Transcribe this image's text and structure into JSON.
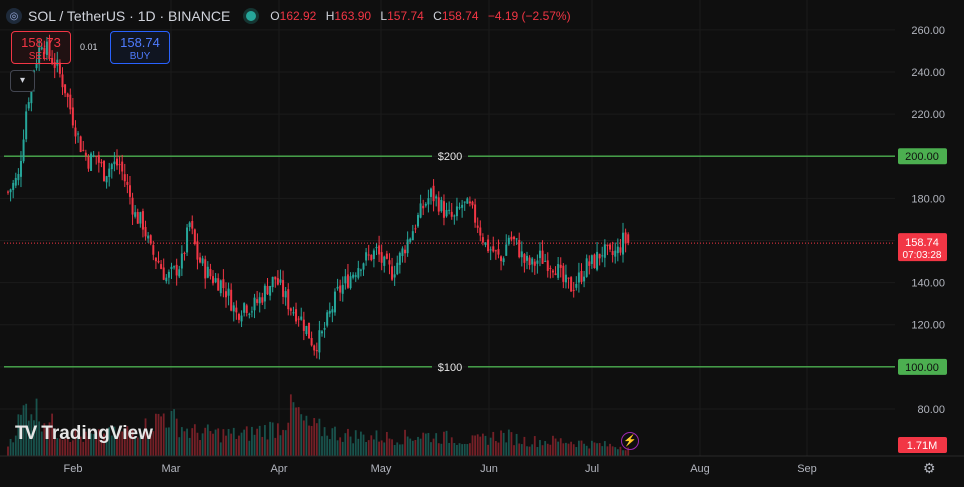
{
  "header": {
    "symbol_icon": "solana-icon",
    "title": "SOL / TetherUS · 1D · BINANCE",
    "ohlc": [
      {
        "key": "O",
        "value": "162.92"
      },
      {
        "key": "H",
        "value": "163.90"
      },
      {
        "key": "L",
        "value": "157.74"
      },
      {
        "key": "C",
        "value": "158.74"
      }
    ],
    "change": "−4.19 (−2.57%)"
  },
  "trade": {
    "sell_price": "158.73",
    "sell_label": "SELL",
    "spread": "0.01",
    "buy_price": "158.74",
    "buy_label": "BUY"
  },
  "collapse_icon": "chevron-down-icon",
  "branding": {
    "logo_text": "TradingView",
    "logo_icon": "tradingview-logo-icon"
  },
  "flash_icon": "lightning-icon",
  "settings_icon": "gear-icon",
  "colors": {
    "up": "#26a69a",
    "down": "#f23645",
    "level_line": "#4caf50",
    "current_line": "#f23645"
  },
  "chart_data": {
    "type": "candlestick",
    "y_axis": {
      "ticks": [
        "260.00",
        "240.00",
        "220.00",
        "200.00",
        "180.00",
        "160.00",
        "140.00",
        "120.00",
        "100.00",
        "80.00"
      ],
      "range": [
        70,
        268
      ]
    },
    "x_axis": {
      "ticks": [
        "Feb",
        "Mar",
        "Apr",
        "May",
        "Jun",
        "Jul",
        "Aug",
        "Sep"
      ]
    },
    "horizontal_lines": [
      {
        "label": "$200",
        "value": 200,
        "axis_label": "200.00"
      },
      {
        "label": "$100",
        "value": 100,
        "axis_label": "100.00"
      }
    ],
    "current_price": {
      "value": 158.74,
      "label": "158.74",
      "countdown": "07:03:28"
    },
    "volume": {
      "last_label": "1.71M"
    },
    "ohlc_keypoints": {
      "comment_free": true,
      "close_path": [
        [
          0,
          183
        ],
        [
          4,
          190
        ],
        [
          7,
          222
        ],
        [
          10,
          242
        ],
        [
          13,
          255
        ],
        [
          16,
          248
        ],
        [
          19,
          242
        ],
        [
          22,
          232
        ],
        [
          25,
          218
        ],
        [
          28,
          205
        ],
        [
          31,
          198
        ],
        [
          34,
          200
        ],
        [
          37,
          192
        ],
        [
          40,
          196
        ],
        [
          43,
          196
        ],
        [
          46,
          185
        ],
        [
          49,
          172
        ],
        [
          52,
          168
        ],
        [
          55,
          155
        ],
        [
          58,
          150
        ],
        [
          61,
          142
        ],
        [
          64,
          145
        ],
        [
          67,
          150
        ],
        [
          70,
          168
        ],
        [
          73,
          152
        ],
        [
          76,
          146
        ],
        [
          79,
          142
        ],
        [
          82,
          140
        ],
        [
          85,
          134
        ],
        [
          88,
          125
        ],
        [
          91,
          130
        ],
        [
          94,
          128
        ],
        [
          97,
          132
        ],
        [
          100,
          138
        ],
        [
          103,
          142
        ],
        [
          106,
          135
        ],
        [
          109,
          128
        ],
        [
          112,
          125
        ],
        [
          115,
          118
        ],
        [
          118,
          110
        ],
        [
          121,
          115
        ],
        [
          124,
          125
        ],
        [
          127,
          135
        ],
        [
          130,
          140
        ],
        [
          133,
          145
        ],
        [
          136,
          150
        ],
        [
          139,
          152
        ],
        [
          142,
          155
        ],
        [
          145,
          148
        ],
        [
          148,
          145
        ],
        [
          151,
          152
        ],
        [
          154,
          160
        ],
        [
          157,
          168
        ],
        [
          160,
          176
        ],
        [
          163,
          182
        ],
        [
          166,
          178
        ],
        [
          169,
          172
        ],
        [
          172,
          170
        ],
        [
          175,
          177
        ],
        [
          178,
          175
        ],
        [
          181,
          168
        ],
        [
          184,
          158
        ],
        [
          187,
          155
        ],
        [
          190,
          150
        ],
        [
          193,
          162
        ],
        [
          196,
          158
        ],
        [
          199,
          150
        ],
        [
          202,
          148
        ],
        [
          205,
          152
        ],
        [
          208,
          150
        ],
        [
          211,
          148
        ],
        [
          214,
          140
        ],
        [
          217,
          138
        ],
        [
          220,
          142
        ],
        [
          223,
          148
        ],
        [
          226,
          150
        ],
        [
          229,
          155
        ],
        [
          232,
          152
        ],
        [
          235,
          155
        ],
        [
          237,
          160
        ],
        [
          239,
          158.74
        ]
      ],
      "volume_path": [
        [
          0,
          0.2
        ],
        [
          8,
          0.9
        ],
        [
          12,
          0.7
        ],
        [
          20,
          0.4
        ],
        [
          30,
          0.3
        ],
        [
          40,
          0.35
        ],
        [
          55,
          0.5
        ],
        [
          60,
          0.7
        ],
        [
          70,
          0.4
        ],
        [
          90,
          0.35
        ],
        [
          105,
          0.5
        ],
        [
          110,
          0.8
        ],
        [
          115,
          0.5
        ],
        [
          130,
          0.35
        ],
        [
          150,
          0.3
        ],
        [
          160,
          0.35
        ],
        [
          170,
          0.3
        ],
        [
          180,
          0.25
        ],
        [
          190,
          0.35
        ],
        [
          200,
          0.25
        ],
        [
          215,
          0.25
        ],
        [
          225,
          0.2
        ],
        [
          239,
          0.15
        ]
      ]
    }
  }
}
